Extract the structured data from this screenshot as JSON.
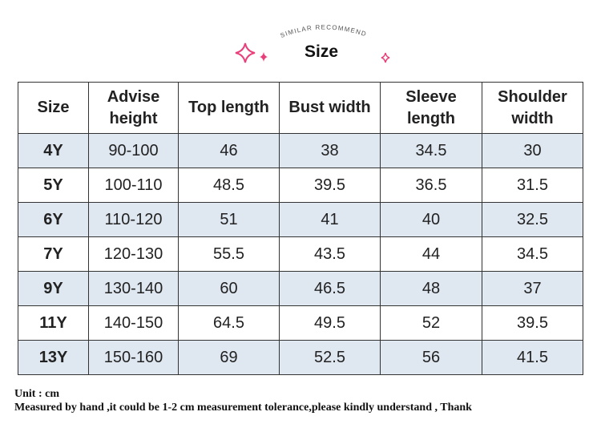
{
  "header": {
    "subtitle": "SIMILAR RECOMMEND",
    "title": "Size"
  },
  "table": {
    "columns": [
      "Size",
      "Advise height",
      "Top length",
      "Bust width",
      "Sleeve length",
      "Shoulder width"
    ],
    "rows": [
      [
        "4Y",
        "90-100",
        "46",
        "38",
        "34.5",
        "30"
      ],
      [
        "5Y",
        "100-110",
        "48.5",
        "39.5",
        "36.5",
        "31.5"
      ],
      [
        "6Y",
        "110-120",
        "51",
        "41",
        "40",
        "32.5"
      ],
      [
        "7Y",
        "120-130",
        "55.5",
        "43.5",
        "44",
        "34.5"
      ],
      [
        "9Y",
        "130-140",
        "60",
        "46.5",
        "48",
        "37"
      ],
      [
        "11Y",
        "140-150",
        "64.5",
        "49.5",
        "52",
        "39.5"
      ],
      [
        "13Y",
        "150-160",
        "69",
        "52.5",
        "56",
        "41.5"
      ]
    ]
  },
  "notes": [
    "Unit : cm",
    "Measured by hand ,it could be 1-2 cm measurement tolerance,please kindly understand , Thank"
  ]
}
